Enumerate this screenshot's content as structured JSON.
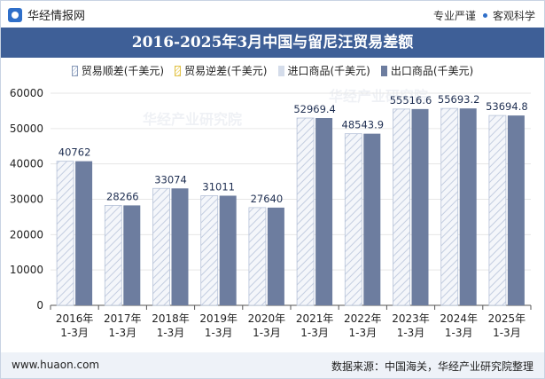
{
  "header": {
    "logo_text": "华经情报网",
    "tagline_left": "专业严谨",
    "tagline_right": "客观科学"
  },
  "footer": {
    "website": "www.huaon.com",
    "source": "数据来源：中国海关，华经产业研究院整理"
  },
  "watermark": "华经产业研究院",
  "colors": {
    "title_bar": "#3e5f97",
    "import_bar": "#d4dcea",
    "export_bar": "#6d7d9f",
    "surplus_hatch": "#c8d3e6"
  },
  "chart_data": {
    "type": "bar",
    "title": "2016-2025年3月中国与留尼汪贸易差额",
    "legend": [
      "贸易顺差(千美元)",
      "贸易逆差(千美元)",
      "进口商品(千美元)",
      "出口商品(千美元)"
    ],
    "categories": [
      "2016年1-3月",
      "2017年1-3月",
      "2018年1-3月",
      "2019年1-3月",
      "2020年1-3月",
      "2021年1-3月",
      "2022年1-3月",
      "2023年1-3月",
      "2024年1-3月",
      "2025年1-3月"
    ],
    "category_lines": [
      [
        "2016年",
        "1-3月"
      ],
      [
        "2017年",
        "1-3月"
      ],
      [
        "2018年",
        "1-3月"
      ],
      [
        "2019年",
        "1-3月"
      ],
      [
        "2020年",
        "1-3月"
      ],
      [
        "2021年",
        "1-3月"
      ],
      [
        "2022年",
        "1-3月"
      ],
      [
        "2023年",
        "1-3月"
      ],
      [
        "2024年",
        "1-3月"
      ],
      [
        "2025年",
        "1-3月"
      ]
    ],
    "series": [
      {
        "name": "贸易顺差(千美元)",
        "values": [
          40762,
          28266,
          33074,
          31011,
          27640,
          52969.4,
          48543.9,
          55516.6,
          55693.2,
          53694.8
        ]
      },
      {
        "name": "出口商品(千美元)",
        "values": [
          40762,
          28266,
          33074,
          31011,
          27640,
          52969.4,
          48543.9,
          55516.6,
          55693.2,
          53694.8
        ]
      }
    ],
    "data_labels": [
      "40762",
      "28266",
      "33074",
      "31011",
      "27640",
      "52969.4",
      "48543.9",
      "55516.6",
      "55693.2",
      "53694.8"
    ],
    "yticks": [
      "0",
      "10000",
      "20000",
      "30000",
      "40000",
      "50000",
      "60000"
    ],
    "ylim": [
      0,
      60000
    ],
    "legend_position": "top-center"
  }
}
